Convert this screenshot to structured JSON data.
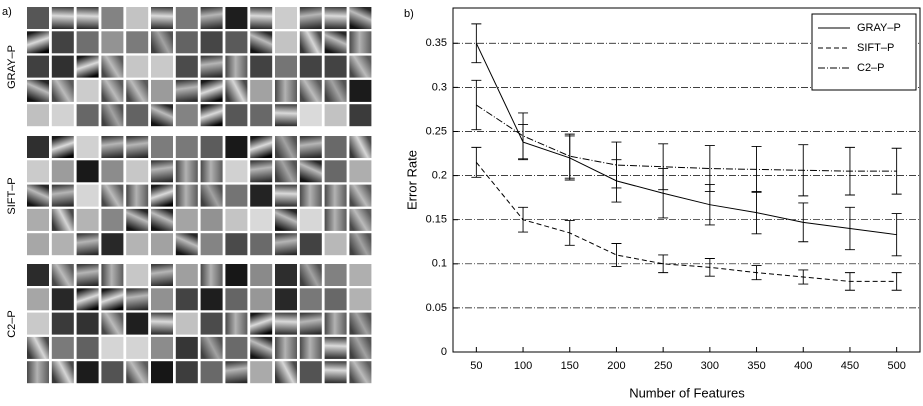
{
  "panel_a": {
    "label": "a)",
    "groups": [
      "GRAY–P",
      "SIFT–P",
      "C2–P"
    ]
  },
  "chart_data": {
    "type": "line",
    "panel_label": "b)",
    "xlabel": "Number of Features",
    "ylabel": "Error Rate",
    "x": [
      50,
      100,
      150,
      200,
      250,
      300,
      350,
      400,
      450,
      500
    ],
    "xlim": [
      25,
      525
    ],
    "xticks": [
      50,
      100,
      150,
      200,
      250,
      300,
      350,
      400,
      450,
      500
    ],
    "ylim": [
      0,
      0.39
    ],
    "yticks": [
      0,
      0.05,
      0.1,
      0.15,
      0.2,
      0.25,
      0.3,
      0.35
    ],
    "grid": true,
    "legend": "upper right",
    "series": [
      {
        "name": "GRAY–P",
        "color": "#000000",
        "dash": "solid",
        "values": [
          0.35,
          0.238,
          0.22,
          0.194,
          0.18,
          0.167,
          0.158,
          0.147,
          0.14,
          0.133
        ],
        "errors": [
          0.022,
          0.02,
          0.025,
          0.024,
          0.028,
          0.023,
          0.024,
          0.022,
          0.024,
          0.024
        ]
      },
      {
        "name": "SIFT–P",
        "color": "#000000",
        "dash": "dashed",
        "values": [
          0.215,
          0.15,
          0.135,
          0.11,
          0.1,
          0.096,
          0.09,
          0.085,
          0.08,
          0.08
        ],
        "errors": [
          0.017,
          0.014,
          0.014,
          0.013,
          0.01,
          0.01,
          0.008,
          0.008,
          0.01,
          0.01
        ]
      },
      {
        "name": "C2–P",
        "color": "#000000",
        "dash": "dashdot",
        "values": [
          0.28,
          0.245,
          0.222,
          0.212,
          0.21,
          0.208,
          0.207,
          0.206,
          0.205,
          0.205
        ],
        "errors": [
          0.028,
          0.026,
          0.025,
          0.026,
          0.026,
          0.026,
          0.026,
          0.029,
          0.027,
          0.026
        ]
      }
    ]
  }
}
